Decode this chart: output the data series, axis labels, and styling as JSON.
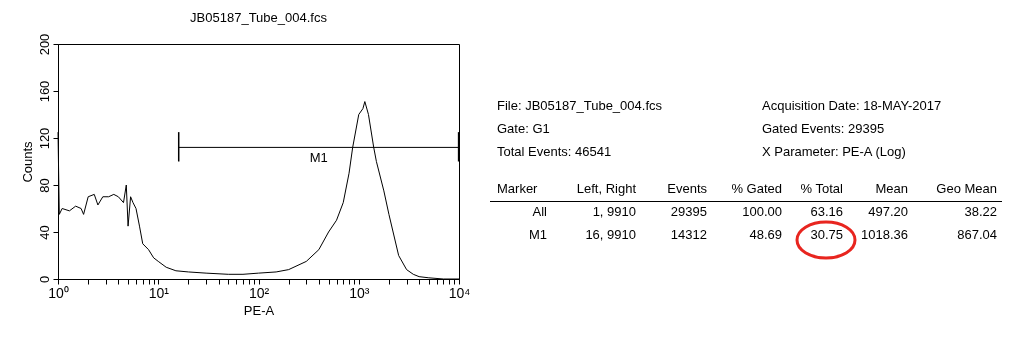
{
  "chart_data": [
    {
      "type": "line",
      "title": "JB05187_Tube_004.fcs",
      "xlabel": "PE-A",
      "ylabel": "Counts",
      "log": "x",
      "grid": false,
      "marker": "none",
      "xlim": [
        1,
        10000
      ],
      "ylim": [
        0,
        200
      ],
      "xticks": [
        {
          "value": 1,
          "label": "10⁰"
        },
        {
          "value": 2,
          "label": null
        },
        {
          "value": 3,
          "label": null
        },
        {
          "value": 4,
          "label": null
        },
        {
          "value": 5,
          "label": null
        },
        {
          "value": 6,
          "label": null
        },
        {
          "value": 7,
          "label": null
        },
        {
          "value": 8,
          "label": null
        },
        {
          "value": 9,
          "label": null
        },
        {
          "value": 10,
          "label": "10¹"
        },
        {
          "value": 20,
          "label": null
        },
        {
          "value": 30,
          "label": null
        },
        {
          "value": 40,
          "label": null
        },
        {
          "value": 50,
          "label": null
        },
        {
          "value": 60,
          "label": null
        },
        {
          "value": 70,
          "label": null
        },
        {
          "value": 80,
          "label": null
        },
        {
          "value": 90,
          "label": null
        },
        {
          "value": 100,
          "label": "10²"
        },
        {
          "value": 200,
          "label": null
        },
        {
          "value": 300,
          "label": null
        },
        {
          "value": 400,
          "label": null
        },
        {
          "value": 500,
          "label": null
        },
        {
          "value": 600,
          "label": null
        },
        {
          "value": 700,
          "label": null
        },
        {
          "value": 800,
          "label": null
        },
        {
          "value": 900,
          "label": null
        },
        {
          "value": 1000,
          "label": "10³"
        },
        {
          "value": 2000,
          "label": null
        },
        {
          "value": 3000,
          "label": null
        },
        {
          "value": 4000,
          "label": null
        },
        {
          "value": 5000,
          "label": null
        },
        {
          "value": 6000,
          "label": null
        },
        {
          "value": 7000,
          "label": null
        },
        {
          "value": 8000,
          "label": null
        },
        {
          "value": 9000,
          "label": null
        },
        {
          "value": 10000,
          "label": "10⁴"
        }
      ],
      "yticks": [
        0,
        40,
        80,
        120,
        160,
        200
      ],
      "series": [
        {
          "color": "#000000",
          "x": [
            1,
            1.03,
            1.1,
            1.3,
            1.5,
            1.7,
            1.8,
            2,
            2.3,
            2.5,
            2.8,
            3.2,
            3.6,
            4,
            4.5,
            4.8,
            5,
            5.3,
            5.6,
            6,
            6.5,
            7,
            8,
            9,
            10,
            12,
            15,
            20,
            30,
            50,
            70,
            100,
            150,
            200,
            300,
            400,
            500,
            600,
            700,
            800,
            870,
            1000,
            1100,
            1150,
            1250,
            1410,
            1500,
            1780,
            2000,
            2500,
            3000,
            3500,
            4000,
            5000,
            7000,
            10000
          ],
          "values": [
            125,
            55,
            60,
            58,
            62,
            60,
            55,
            70,
            72,
            63,
            70,
            70,
            72,
            70,
            65,
            80,
            45,
            70,
            65,
            60,
            45,
            30,
            25,
            18,
            15,
            10,
            7,
            6,
            5,
            4,
            4,
            5,
            6,
            8,
            15,
            25,
            40,
            50,
            65,
            90,
            112,
            140,
            145,
            151,
            140,
            112,
            100,
            75,
            55,
            20,
            8,
            4,
            2,
            1,
            0,
            0
          ]
        },
        {
          "type": "line",
          "name": "M1",
          "color": "#000000",
          "x": [
            16,
            9910
          ],
          "values": [
            112,
            112
          ],
          "errors": [
            [
              100,
              125
            ],
            [
              100,
              125
            ]
          ]
        }
      ]
    },
    {
      "type": "other",
      "annotations": [
        "File: JB05187_Tube_004.fcs",
        "Acquisition Date: 18-MAY-2017",
        "Gate: G1",
        "Gated Events: 29395",
        "Total Events: 46541",
        "X Parameter: PE-A (Log)",
        "Marker",
        "Left, Right",
        "Events",
        "% Gated",
        "% Total",
        "Mean",
        "Geo Mean",
        "All",
        "1,  9910",
        "29395",
        "100.00",
        "63.16",
        "497.20",
        "38.22",
        "M1",
        "16,  9910",
        "14312",
        "48.69",
        "30.75",
        "1018.36",
        "867.04"
      ]
    }
  ]
}
